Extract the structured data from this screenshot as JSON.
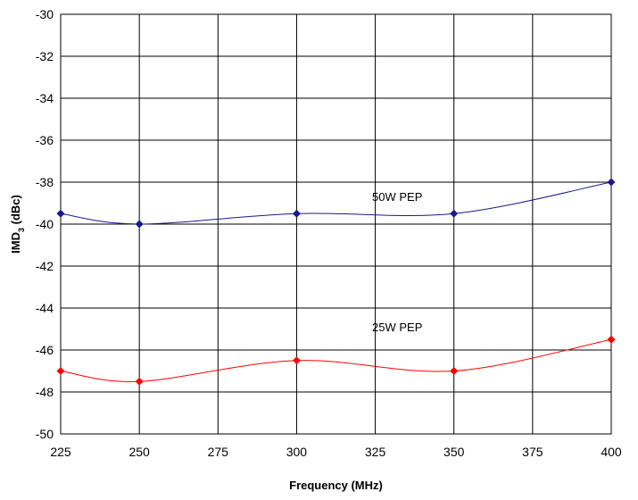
{
  "chart_data": {
    "type": "line",
    "title": "",
    "xlabel": "Frequency (MHz)",
    "ylabel": {
      "main": "IMD",
      "subscript": "3",
      "suffix": " (dBc)"
    },
    "xlim": [
      225,
      400
    ],
    "ylim": [
      -50,
      -30
    ],
    "x_ticks": [
      225,
      250,
      275,
      300,
      325,
      350,
      375,
      400
    ],
    "x_tick_labels": [
      "225",
      "250",
      "275",
      "300",
      "325",
      "350",
      "375",
      "400"
    ],
    "y_ticks": [
      -30,
      -32,
      -34,
      -36,
      -38,
      -40,
      -42,
      -44,
      -46,
      -48,
      -50
    ],
    "y_tick_labels": [
      "-30",
      "-32",
      "-34",
      "-36",
      "-38",
      "-40",
      "-42",
      "-44",
      "-46",
      "-48",
      "-50"
    ],
    "grid": true,
    "x": [
      225,
      250,
      300,
      350,
      400
    ],
    "series": [
      {
        "name": "50W PEP",
        "color": "#1a1a8c",
        "values": [
          -39.5,
          -40.0,
          -39.5,
          -39.5,
          -38.0
        ]
      },
      {
        "name": "25W PEP",
        "color": "#ff0000",
        "values": [
          -47.0,
          -47.5,
          -46.5,
          -47.0,
          -45.5
        ]
      }
    ],
    "annotations": [
      {
        "text": "50W PEP",
        "x": 324,
        "y": -38.9
      },
      {
        "text": "25W PEP",
        "x": 324,
        "y": -45.1
      }
    ]
  }
}
